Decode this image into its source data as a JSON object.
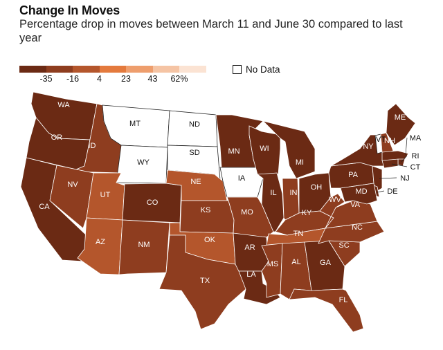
{
  "title": "Change In Moves",
  "subtitle": "Percentage drop in moves between March 11 and June 30 compared to last year",
  "legend": {
    "colors": [
      "#6b2a14",
      "#8e3d1f",
      "#b4562c",
      "#e47a3d",
      "#ee9e6d",
      "#f5c4a4",
      "#fbe3d3"
    ],
    "ticks": [
      "-35",
      "-16",
      "4",
      "23",
      "43",
      "62%"
    ],
    "no_data_label": "No Data",
    "no_data_color": "#ffffff"
  },
  "map": {
    "border_color": "#ffffff",
    "states": [
      {
        "id": "WA",
        "label": "WA",
        "color": "#6b2a14"
      },
      {
        "id": "OR",
        "label": "OR",
        "color": "#6b2a14"
      },
      {
        "id": "CA",
        "label": "CA",
        "color": "#6b2a14"
      },
      {
        "id": "ID",
        "label": "ID",
        "color": "#8e3d1f"
      },
      {
        "id": "NV",
        "label": "NV",
        "color": "#8e3d1f"
      },
      {
        "id": "MT",
        "label": "MT",
        "color": "#ffffff"
      },
      {
        "id": "WY",
        "label": "WY",
        "color": "#ffffff"
      },
      {
        "id": "UT",
        "label": "UT",
        "color": "#b4562c"
      },
      {
        "id": "AZ",
        "label": "AZ",
        "color": "#b4562c"
      },
      {
        "id": "CO",
        "label": "CO",
        "color": "#6b2a14"
      },
      {
        "id": "NM",
        "label": "NM",
        "color": "#8e3d1f"
      },
      {
        "id": "ND",
        "label": "ND",
        "color": "#ffffff"
      },
      {
        "id": "SD",
        "label": "SD",
        "color": "#ffffff"
      },
      {
        "id": "NE",
        "label": "NE",
        "color": "#b4562c"
      },
      {
        "id": "KS",
        "label": "KS",
        "color": "#8e3d1f"
      },
      {
        "id": "OK",
        "label": "OK",
        "color": "#b4562c"
      },
      {
        "id": "TX",
        "label": "TX",
        "color": "#8e3d1f"
      },
      {
        "id": "MN",
        "label": "MN",
        "color": "#6b2a14"
      },
      {
        "id": "IA",
        "label": "IA",
        "color": "#ffffff"
      },
      {
        "id": "MO",
        "label": "MO",
        "color": "#8e3d1f"
      },
      {
        "id": "AR",
        "label": "AR",
        "color": "#6b2a14"
      },
      {
        "id": "LA",
        "label": "LA",
        "color": "#6b2a14"
      },
      {
        "id": "WI",
        "label": "WI",
        "color": "#6b2a14"
      },
      {
        "id": "IL",
        "label": "IL",
        "color": "#6b2a14"
      },
      {
        "id": "MI",
        "label": "MI",
        "color": "#6b2a14"
      },
      {
        "id": "IN",
        "label": "IN",
        "color": "#8e3d1f"
      },
      {
        "id": "OH",
        "label": "OH",
        "color": "#6b2a14"
      },
      {
        "id": "KY",
        "label": "KY",
        "color": "#8e3d1f"
      },
      {
        "id": "TN",
        "label": "TN",
        "color": "#b4562c"
      },
      {
        "id": "MS",
        "label": "MS",
        "color": "#8e3d1f"
      },
      {
        "id": "AL",
        "label": "AL",
        "color": "#8e3d1f"
      },
      {
        "id": "GA",
        "label": "GA",
        "color": "#6b2a14"
      },
      {
        "id": "FL",
        "label": "FL",
        "color": "#8e3d1f"
      },
      {
        "id": "SC",
        "label": "SC",
        "color": "#8e3d1f"
      },
      {
        "id": "NC",
        "label": "NC",
        "color": "#8e3d1f"
      },
      {
        "id": "VA",
        "label": "VA",
        "color": "#8e3d1f"
      },
      {
        "id": "WV",
        "label": "WV",
        "color": "#8e3d1f"
      },
      {
        "id": "PA",
        "label": "PA",
        "color": "#6b2a14"
      },
      {
        "id": "NY",
        "label": "NY",
        "color": "#6b2a14"
      },
      {
        "id": "VT",
        "label": "VT",
        "color": "#ffffff"
      },
      {
        "id": "NH",
        "label": "NH",
        "color": "#8e3d1f"
      },
      {
        "id": "ME",
        "label": "ME",
        "color": "#6b2a14"
      },
      {
        "id": "MA",
        "label": "MA",
        "color": "#6b2a14"
      },
      {
        "id": "RI",
        "label": "RI",
        "color": "#6b2a14"
      },
      {
        "id": "CT",
        "label": "CT",
        "color": "#6b2a14"
      },
      {
        "id": "NJ",
        "label": "NJ",
        "color": "#6b2a14"
      },
      {
        "id": "DE",
        "label": "DE",
        "color": "#6b2a14"
      },
      {
        "id": "MD",
        "label": "MD",
        "color": "#6b2a14"
      }
    ]
  }
}
